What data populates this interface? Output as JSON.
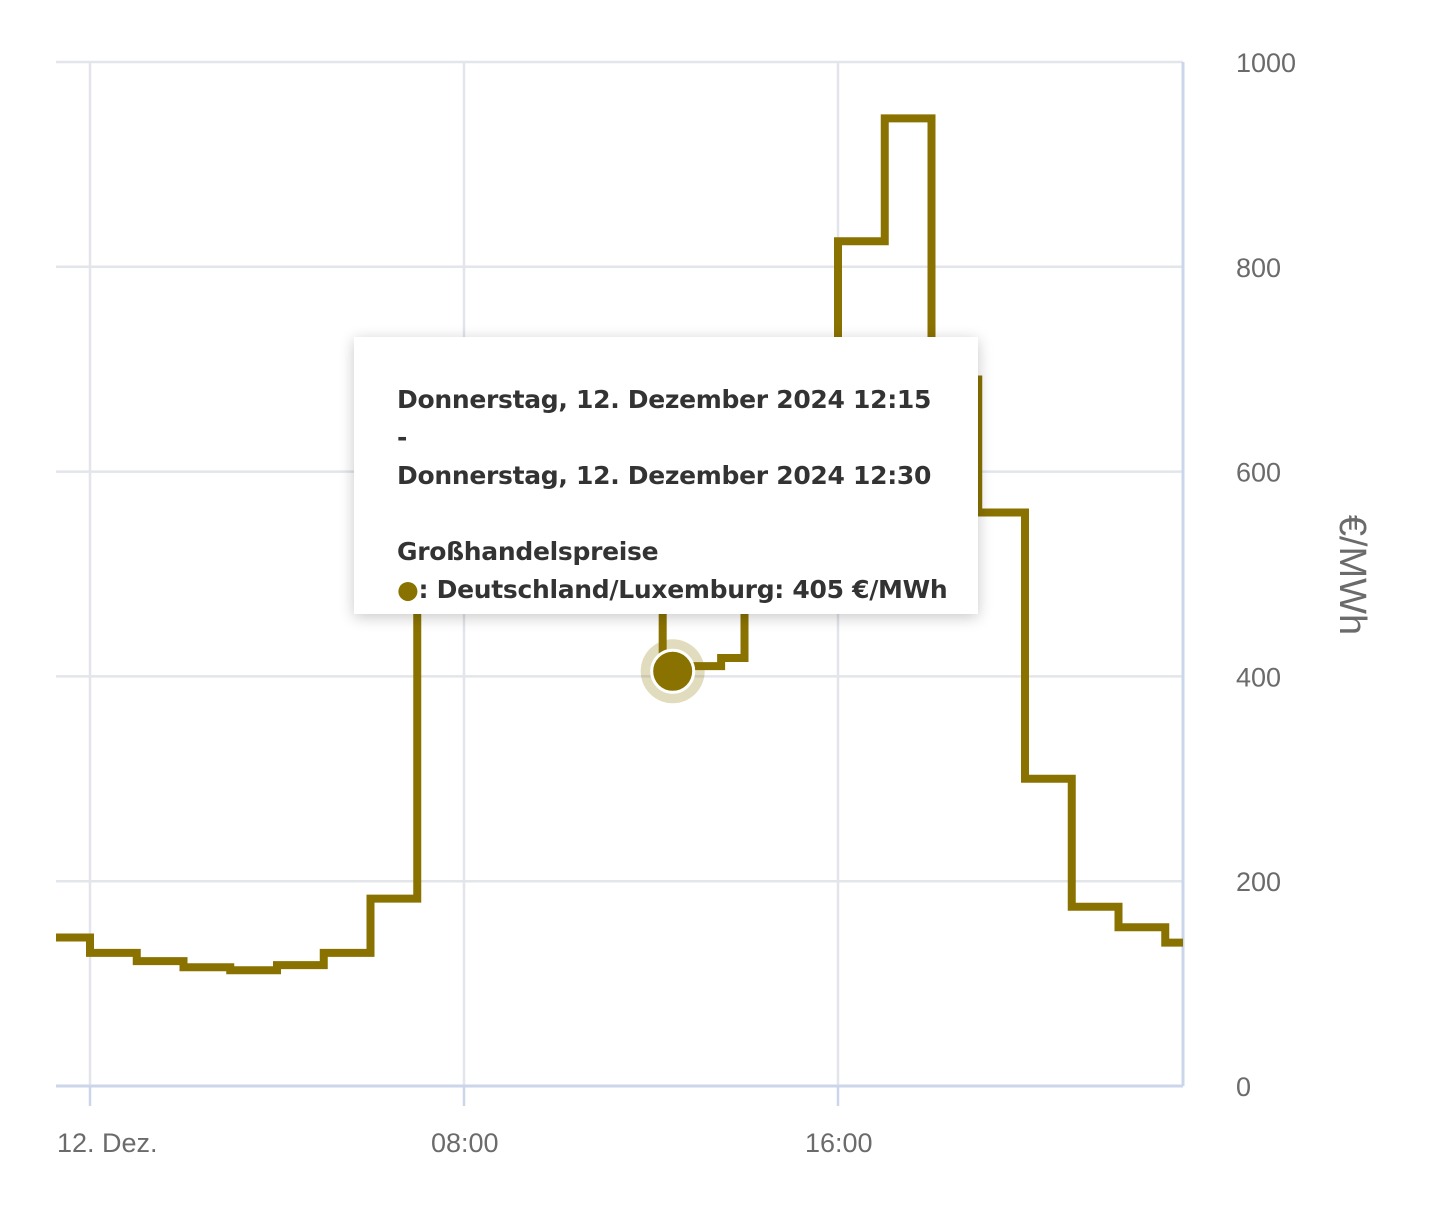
{
  "chart_data": {
    "type": "line",
    "step": true,
    "y_axis": {
      "label": "€/MWh",
      "ylim": [
        0,
        1000
      ],
      "ticks": [
        "0",
        "200",
        "400",
        "600",
        "800",
        "1000"
      ],
      "position": "right"
    },
    "x_axis": {
      "tick_labels": [
        "12. Dez.",
        "08:00",
        "16:00"
      ],
      "tick_hours": [
        0,
        8,
        16
      ],
      "xlim_hours": [
        -0.75,
        23.4
      ]
    },
    "grid": true,
    "series": [
      {
        "name": "Deutschland/Luxemburg",
        "color": "#8a7200",
        "points": [
          {
            "h": -0.75,
            "v": 145
          },
          {
            "h": 0,
            "v": 130
          },
          {
            "h": 1,
            "v": 122
          },
          {
            "h": 2,
            "v": 116
          },
          {
            "h": 3,
            "v": 113
          },
          {
            "h": 4,
            "v": 118
          },
          {
            "h": 5,
            "v": 130
          },
          {
            "h": 6,
            "v": 183
          },
          {
            "h": 7,
            "v": 545
          },
          {
            "h": 8,
            "v": 545
          },
          {
            "h": 9,
            "v": 515
          },
          {
            "h": 10,
            "v": 500
          },
          {
            "h": 11,
            "v": 475
          },
          {
            "h": 12.25,
            "v": 405
          },
          {
            "h": 12.5,
            "v": 410
          },
          {
            "h": 13.5,
            "v": 418
          },
          {
            "h": 14,
            "v": 470
          },
          {
            "h": 15,
            "v": 570
          },
          {
            "h": 16,
            "v": 825
          },
          {
            "h": 17,
            "v": 945
          },
          {
            "h": 18,
            "v": 690
          },
          {
            "h": 19,
            "v": 560
          },
          {
            "h": 20,
            "v": 300
          },
          {
            "h": 21,
            "v": 175
          },
          {
            "h": 22,
            "v": 155
          },
          {
            "h": 23,
            "v": 140
          }
        ]
      }
    ],
    "highlight": {
      "h": 12.25,
      "v": 405
    }
  },
  "tooltip": {
    "line1": "Donnerstag, 12. Dezember 2024 12:15 -",
    "line2": "Donnerstag, 12. Dezember 2024 12:30",
    "heading": "Großhandelspreise",
    "marker": "●",
    "series_text": ": Deutschland/Luxemburg: 405 €/MWh"
  }
}
